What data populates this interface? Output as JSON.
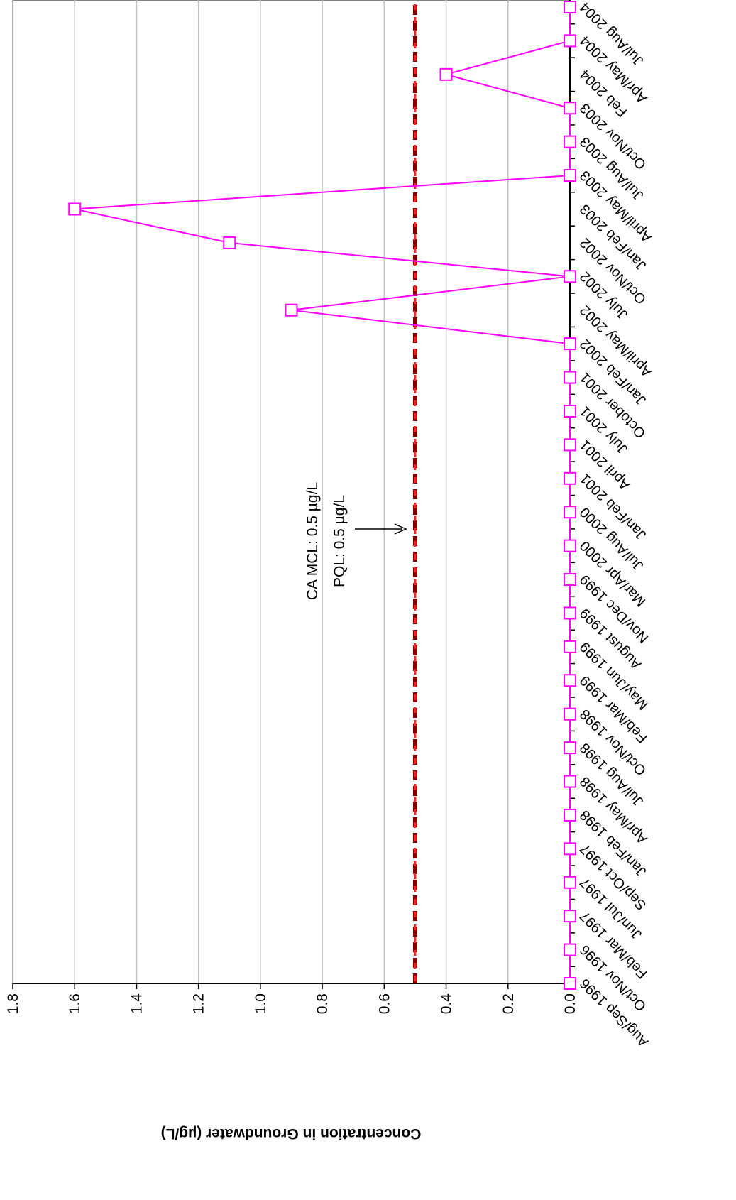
{
  "chart_data": {
    "type": "line",
    "y_label": "Concentration in Groundwater (µg/L)",
    "categories": [
      "Aug/Sep 1996",
      "Oct/Nov 1996",
      "Feb/Mar 1997",
      "Jun/Jul 1997",
      "Sep/Oct 1997",
      "Jan/Feb 1998",
      "Apr/May 1998",
      "Jul/Aug 1998",
      "Oct/Nov 1998",
      "Feb/Mar 1999",
      "May/Jun 1999",
      "August 1999",
      "Nov/Dec 1999",
      "Mar/Apr 2000",
      "Jul/Aug 2000",
      "Jan/Feb 2001",
      "April 2001",
      "July 2001",
      "October 2001",
      "Jan/Feb 2002",
      "April/May 2002",
      "July 2002",
      "Oct/Nov 2002",
      "Jan/Feb 2003",
      "April/May 2003",
      "Jul/Aug 2003",
      "Oct/Nov 2003",
      "Feb 2004",
      "Apr/May 2004",
      "Jul/Aug 2004"
    ],
    "values": [
      0,
      0,
      0,
      0,
      0,
      0,
      0,
      0,
      0,
      0,
      0,
      0,
      0,
      0,
      0,
      0,
      0,
      0,
      0,
      0,
      0.9,
      0,
      1.1,
      1.6,
      0,
      0,
      0,
      0.4,
      0,
      0
    ],
    "color": "#ff00ff",
    "ylim": [
      0,
      1.8
    ],
    "yticks": [
      {
        "value": 0,
        "label": "0.0"
      },
      0.2,
      0.4,
      0.6,
      0.8,
      {
        "value": 1,
        "label": "1.0"
      },
      1.2,
      1.4,
      1.6,
      1.8
    ],
    "grid": true,
    "annotations": [
      {
        "text": "CA MCL: 0.5 µg/L",
        "value": 0.5,
        "color": "#800000"
      },
      {
        "text": "PQL: 0.5 µg/L",
        "value": 0.5,
        "color": "#ff2020"
      }
    ]
  }
}
